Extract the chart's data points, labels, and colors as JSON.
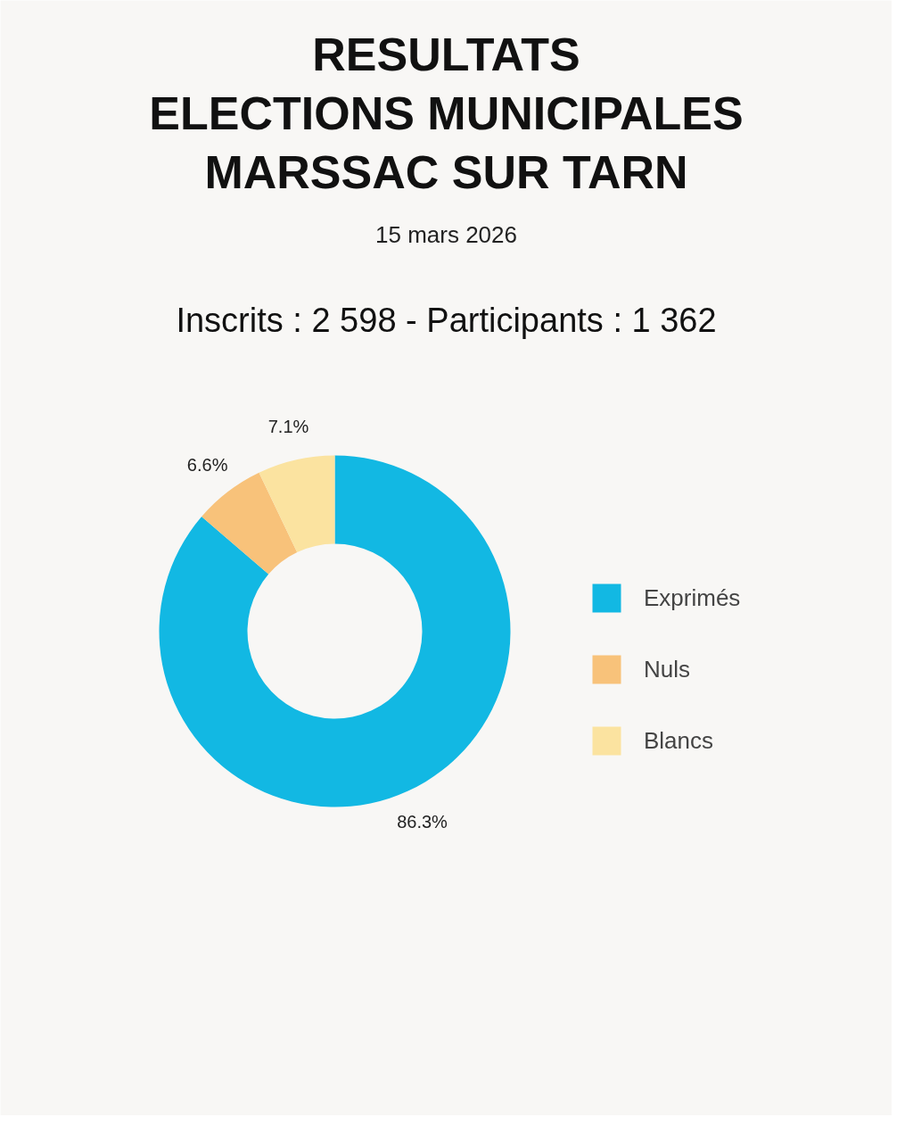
{
  "chart_data": {
    "type": "donut",
    "title": "RESULTATS\nELECTIONS MUNICIPALES\nMARSSAC SUR TARN",
    "subtitle": "15 mars 2026",
    "annotations": [
      "Inscrits : 2 598 - Participants : 1 362"
    ],
    "categories": [
      "Exprimés",
      "Nuls",
      "Blancs"
    ],
    "values": [
      86.3,
      6.6,
      7.1
    ],
    "value_labels": [
      "86.3%",
      "6.6%",
      "7.1%"
    ],
    "colors": [
      "#12b8e3",
      "#f8c27a",
      "#fbe3a0"
    ],
    "legend": "right"
  }
}
